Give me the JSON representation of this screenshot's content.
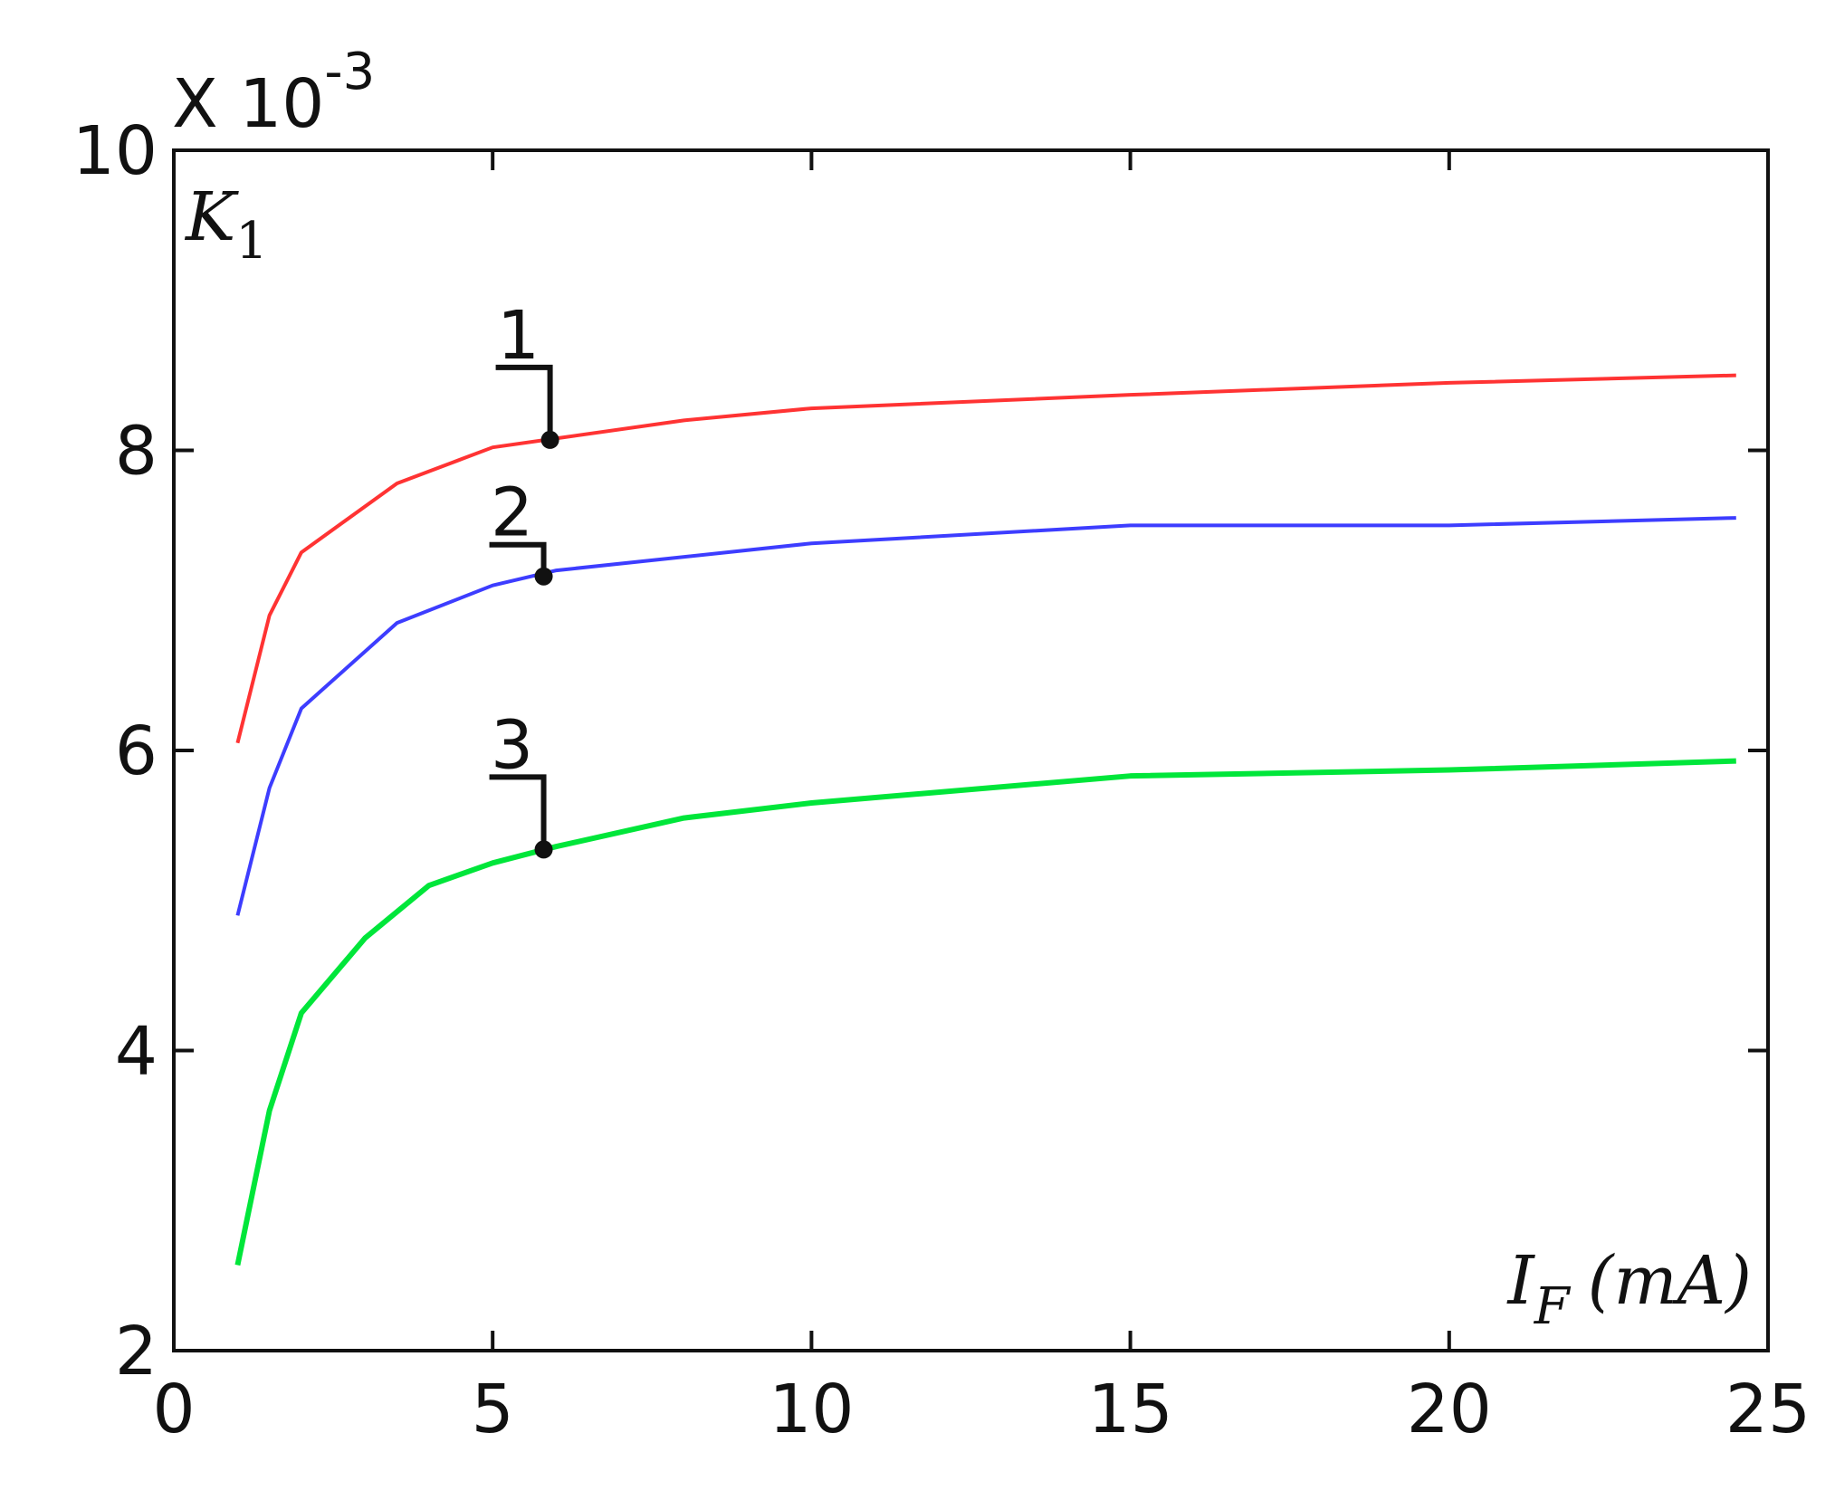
{
  "chart_data": {
    "type": "line",
    "y_multiplier": {
      "base": "X 10",
      "exponent": "-3"
    },
    "y_label": {
      "main": "K",
      "sub": "1"
    },
    "x_label": {
      "main": "I",
      "sub": "F",
      "unit": "(mA)"
    },
    "xlim": [
      0,
      25
    ],
    "xticks": [
      0,
      5,
      10,
      15,
      20,
      25
    ],
    "ylim": [
      2,
      10
    ],
    "yticks": [
      2,
      4,
      6,
      8,
      10
    ],
    "series": [
      {
        "name": "1",
        "color": "#ff3333",
        "x": [
          1,
          1.5,
          2,
          3.5,
          5,
          6,
          8,
          10,
          15,
          20,
          24.5
        ],
        "values": [
          6.05,
          6.9,
          7.32,
          7.78,
          8.02,
          8.08,
          8.2,
          8.28,
          8.37,
          8.45,
          8.5
        ]
      },
      {
        "name": "2",
        "color": "#3d3dff",
        "x": [
          1,
          1.5,
          2,
          3.5,
          5,
          6,
          10,
          15,
          20,
          24.5
        ],
        "values": [
          4.9,
          5.75,
          6.28,
          6.85,
          7.1,
          7.2,
          7.38,
          7.5,
          7.5,
          7.55
        ]
      },
      {
        "name": "3",
        "color": "#00e63a",
        "x": [
          1,
          1.5,
          2,
          3,
          4,
          5,
          6,
          8,
          10,
          15,
          20,
          24.5
        ],
        "values": [
          2.57,
          3.6,
          4.25,
          4.75,
          5.1,
          5.25,
          5.36,
          5.55,
          5.65,
          5.83,
          5.87,
          5.93
        ]
      }
    ],
    "annotations": [
      {
        "text": "1",
        "x": 5.9,
        "y": 8.07
      },
      {
        "text": "2",
        "x": 5.8,
        "y": 7.16
      },
      {
        "text": "3",
        "x": 5.8,
        "y": 5.34
      }
    ]
  }
}
